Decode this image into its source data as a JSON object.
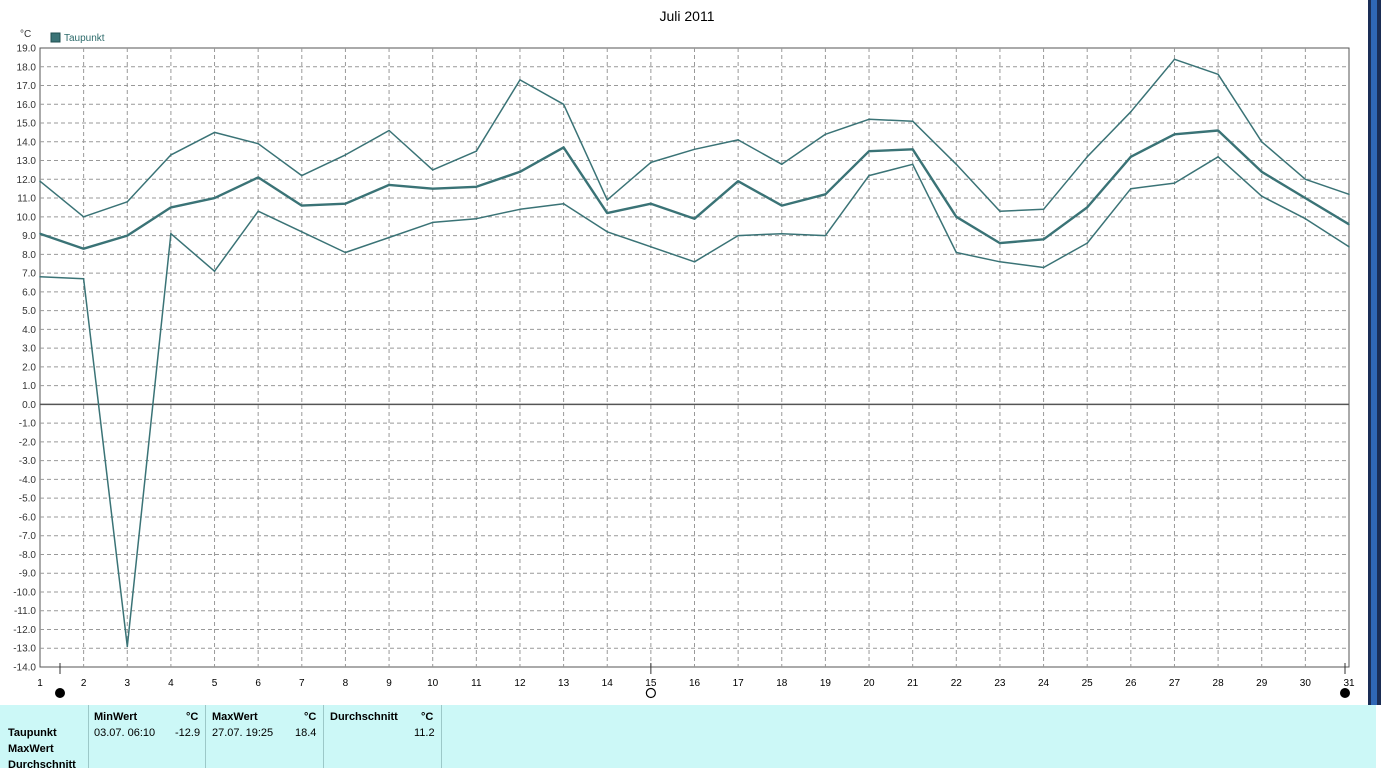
{
  "chart_data": {
    "type": "line",
    "title": "Juli 2011",
    "ylabel": "°C",
    "xlabel": "",
    "legend": [
      "Taupunkt"
    ],
    "legend_position": "top-left",
    "categories": [
      "1",
      "2",
      "3",
      "4",
      "5",
      "6",
      "7",
      "8",
      "9",
      "10",
      "11",
      "12",
      "13",
      "14",
      "15",
      "16",
      "17",
      "18",
      "19",
      "20",
      "21",
      "22",
      "23",
      "24",
      "25",
      "26",
      "27",
      "28",
      "29",
      "30",
      "31"
    ],
    "ylim": [
      -14.0,
      19.0
    ],
    "y_ticks": [
      "19.0",
      "18.0",
      "17.0",
      "16.0",
      "15.0",
      "14.0",
      "13.0",
      "12.0",
      "11.0",
      "10.0",
      "9.0",
      "8.0",
      "7.0",
      "6.0",
      "5.0",
      "4.0",
      "3.0",
      "2.0",
      "1.0",
      "0.0",
      "-1.0",
      "-2.0",
      "-3.0",
      "-4.0",
      "-5.0",
      "-6.0",
      "-7.0",
      "-8.0",
      "-9.0",
      "-10.0",
      "-11.0",
      "-12.0",
      "-13.0",
      "-14.0"
    ],
    "grid": true,
    "series": [
      {
        "name": "Taupunkt",
        "role": "max",
        "values": [
          11.9,
          10.0,
          10.8,
          13.3,
          14.5,
          13.9,
          12.2,
          13.3,
          14.6,
          12.5,
          13.5,
          17.3,
          16.0,
          10.9,
          12.9,
          13.6,
          14.1,
          12.8,
          14.4,
          15.2,
          15.1,
          12.8,
          10.3,
          10.4,
          13.2,
          15.6,
          18.4,
          17.6,
          14.0,
          12.0,
          11.2
        ]
      },
      {
        "name": "Taupunkt",
        "role": "avg",
        "values": [
          9.1,
          8.3,
          9.0,
          10.5,
          11.0,
          12.1,
          10.6,
          10.7,
          11.7,
          11.5,
          11.6,
          12.4,
          13.7,
          10.2,
          10.7,
          9.9,
          11.9,
          10.6,
          11.2,
          13.5,
          13.6,
          10.0,
          8.6,
          8.8,
          10.5,
          13.2,
          14.4,
          14.6,
          12.4,
          11.0,
          9.6
        ]
      },
      {
        "name": "Taupunkt",
        "role": "min",
        "values": [
          6.8,
          6.7,
          -12.9,
          9.1,
          7.1,
          10.3,
          9.2,
          8.1,
          8.9,
          9.7,
          9.9,
          10.4,
          10.7,
          9.2,
          8.4,
          7.6,
          9.0,
          9.1,
          9.0,
          12.2,
          12.8,
          8.1,
          7.6,
          7.3,
          8.6,
          11.5,
          11.8,
          13.2,
          11.1,
          9.9,
          8.4
        ]
      }
    ],
    "moon_phases": [
      {
        "day": 1,
        "phase": "new-moon"
      },
      {
        "day": 15,
        "phase": "full-moon"
      },
      {
        "day": 31,
        "phase": "new-moon"
      }
    ],
    "colors": {
      "line": "#3a7376",
      "grid": "#999999",
      "axis": "#555555",
      "legend_box": "#3a7376",
      "legend_text": "#2d6b6b"
    }
  },
  "stats_table": {
    "headers": {
      "min_label": "MinWert",
      "min_unit": "°C",
      "max_label": "MaxWert",
      "max_unit": "°C",
      "avg_label": "Durchschnitt",
      "avg_unit": "°C"
    },
    "rows": [
      {
        "label": "Taupunkt",
        "min_datetime": "03.07.  06:10",
        "min_value": "-12.9",
        "max_datetime": "27.07.  19:25",
        "max_value": "18.4",
        "avg_value": "11.2"
      },
      {
        "label": "MaxWert"
      },
      {
        "label": "Durchschnitt"
      }
    ],
    "background": "#ccf8f7"
  }
}
